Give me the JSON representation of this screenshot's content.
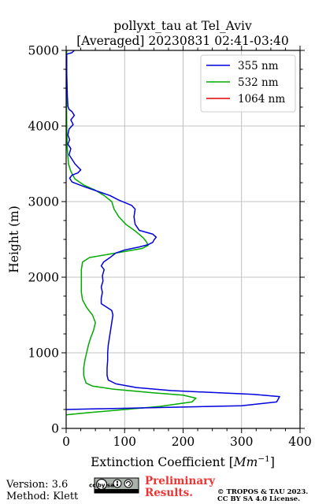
{
  "chart_data": {
    "type": "line",
    "title": "pollyxt_tau at Tel_Aviv",
    "subtitle": "[Averaged] 20230831 02:41-03:40",
    "xlabel": "Extinction Coefficient [Mm⁻¹]",
    "xlabel_main": "Extinction Coefficient [",
    "xlabel_unit": "Mm",
    "xlabel_exp": "−1",
    "xlabel_close": "]",
    "ylabel": "Height (m)",
    "xlim": [
      0,
      400
    ],
    "ylim": [
      0,
      5000
    ],
    "xticks": [
      0,
      100,
      200,
      300,
      400
    ],
    "yticks": [
      0,
      1000,
      2000,
      3000,
      4000,
      5000
    ],
    "minor_x": [
      25,
      50,
      75,
      125,
      150,
      175,
      225,
      250,
      275,
      325,
      350,
      375
    ],
    "minor_y": [
      250,
      500,
      750,
      1250,
      1500,
      1750,
      2250,
      2500,
      2750,
      3250,
      3500,
      3750,
      4250,
      4500,
      4750
    ],
    "grid": true,
    "legend_position": "top-right",
    "series": [
      {
        "name": "355 nm",
        "color": "#0000dd",
        "points": [
          [
            0,
            250
          ],
          [
            120,
            270
          ],
          [
            300,
            300
          ],
          [
            360,
            350
          ],
          [
            365,
            420
          ],
          [
            320,
            450
          ],
          [
            180,
            500
          ],
          [
            120,
            540
          ],
          [
            85,
            590
          ],
          [
            72,
            640
          ],
          [
            70,
            700
          ],
          [
            70,
            800
          ],
          [
            71,
            900
          ],
          [
            71,
            1000
          ],
          [
            72,
            1100
          ],
          [
            74,
            1200
          ],
          [
            76,
            1300
          ],
          [
            78,
            1400
          ],
          [
            80,
            1500
          ],
          [
            78,
            1560
          ],
          [
            70,
            1600
          ],
          [
            60,
            1650
          ],
          [
            60,
            1720
          ],
          [
            62,
            1800
          ],
          [
            60,
            1870
          ],
          [
            63,
            1950
          ],
          [
            62,
            2020
          ],
          [
            65,
            2100
          ],
          [
            60,
            2150
          ],
          [
            64,
            2200
          ],
          [
            75,
            2260
          ],
          [
            85,
            2320
          ],
          [
            100,
            2360
          ],
          [
            125,
            2400
          ],
          [
            140,
            2430
          ],
          [
            148,
            2460
          ],
          [
            150,
            2490
          ],
          [
            154,
            2530
          ],
          [
            148,
            2570
          ],
          [
            125,
            2620
          ],
          [
            118,
            2700
          ],
          [
            116,
            2800
          ],
          [
            118,
            2900
          ],
          [
            112,
            2950
          ],
          [
            90,
            3020
          ],
          [
            75,
            3080
          ],
          [
            60,
            3120
          ],
          [
            45,
            3160
          ],
          [
            30,
            3200
          ],
          [
            10,
            3260
          ],
          [
            6,
            3310
          ],
          [
            10,
            3350
          ],
          [
            20,
            3380
          ],
          [
            25,
            3420
          ],
          [
            20,
            3460
          ],
          [
            15,
            3500
          ],
          [
            10,
            3560
          ],
          [
            5,
            3620
          ],
          [
            8,
            3700
          ],
          [
            3,
            3760
          ],
          [
            6,
            3820
          ],
          [
            3,
            3880
          ],
          [
            5,
            3960
          ],
          [
            12,
            4020
          ],
          [
            8,
            4080
          ],
          [
            14,
            4140
          ],
          [
            10,
            4190
          ],
          [
            5,
            4220
          ],
          [
            3,
            4260
          ],
          [
            2,
            4400
          ],
          [
            1,
            4700
          ],
          [
            1,
            4950
          ],
          [
            10,
            4970
          ],
          [
            14,
            5000
          ]
        ]
      },
      {
        "name": "532 nm",
        "color": "#00aa00",
        "points": [
          [
            0,
            180
          ],
          [
            40,
            210
          ],
          [
            100,
            250
          ],
          [
            160,
            290
          ],
          [
            215,
            350
          ],
          [
            222,
            400
          ],
          [
            200,
            440
          ],
          [
            150,
            470
          ],
          [
            80,
            520
          ],
          [
            45,
            560
          ],
          [
            34,
            600
          ],
          [
            30,
            700
          ],
          [
            30,
            800
          ],
          [
            32,
            900
          ],
          [
            35,
            1000
          ],
          [
            38,
            1100
          ],
          [
            42,
            1200
          ],
          [
            47,
            1300
          ],
          [
            50,
            1400
          ],
          [
            45,
            1500
          ],
          [
            35,
            1600
          ],
          [
            28,
            1700
          ],
          [
            26,
            1800
          ],
          [
            26,
            1900
          ],
          [
            26,
            2000
          ],
          [
            26,
            2100
          ],
          [
            28,
            2200
          ],
          [
            40,
            2260
          ],
          [
            70,
            2300
          ],
          [
            100,
            2340
          ],
          [
            130,
            2380
          ],
          [
            140,
            2420
          ],
          [
            138,
            2460
          ],
          [
            132,
            2520
          ],
          [
            120,
            2600
          ],
          [
            102,
            2700
          ],
          [
            90,
            2800
          ],
          [
            82,
            2900
          ],
          [
            78,
            3000
          ],
          [
            65,
            3080
          ],
          [
            50,
            3150
          ],
          [
            30,
            3220
          ],
          [
            15,
            3300
          ],
          [
            8,
            3400
          ],
          [
            4,
            3500
          ],
          [
            2,
            3700
          ],
          [
            1,
            4000
          ],
          [
            0.5,
            4500
          ],
          [
            0.5,
            4800
          ],
          [
            1,
            5000
          ]
        ]
      },
      {
        "name": "1064 nm",
        "color": "#dd0000",
        "points": []
      }
    ]
  },
  "footer": {
    "version": "Version: 3.6",
    "method": "Method: Klett",
    "cc_badge": "cc by sa",
    "preliminary_line1": "Preliminary",
    "preliminary_line2": "Results.",
    "copyright_line1": "© TROPOS & TAU 2023.",
    "copyright_line2": "CC BY SA 4.0 License."
  }
}
